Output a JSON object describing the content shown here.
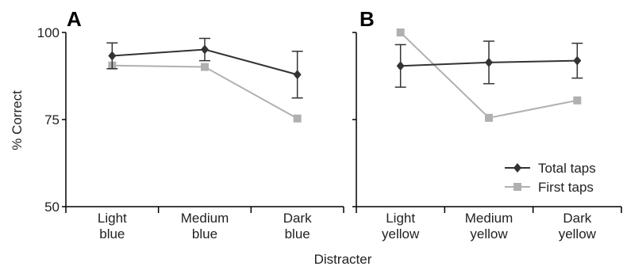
{
  "chart_data": {
    "type": "line",
    "xlabel": "Distracter",
    "ylabel": "% Correct",
    "ylim": [
      50,
      100
    ],
    "yticks": [
      50,
      75,
      100
    ],
    "grid": false,
    "legend": {
      "placement": "bottom-right of panel B",
      "entries": [
        "Total taps",
        "First taps"
      ]
    },
    "colors": {
      "total": "#333333",
      "first": "#b0b0b0"
    },
    "panels": [
      {
        "label": "A",
        "categories": [
          [
            "Light",
            "blue"
          ],
          [
            "Medium",
            "blue"
          ],
          [
            "Dark",
            "blue"
          ]
        ],
        "series": [
          {
            "name": "Total taps",
            "marker": "diamond",
            "values": [
              93.3,
              95.1,
              87.9
            ],
            "error": [
              3.7,
              3.2,
              6.7
            ]
          },
          {
            "name": "First taps",
            "marker": "square",
            "values": [
              90.5,
              90.1,
              75.3
            ]
          }
        ]
      },
      {
        "label": "B",
        "categories": [
          [
            "Light",
            "yellow"
          ],
          [
            "Medium",
            "yellow"
          ],
          [
            "Dark",
            "yellow"
          ]
        ],
        "series": [
          {
            "name": "Total taps",
            "marker": "diamond",
            "values": [
              90.4,
              91.4,
              91.9
            ],
            "error": [
              6.1,
              6.1,
              5.0
            ]
          },
          {
            "name": "First taps",
            "marker": "square",
            "values": [
              100,
              75.5,
              80.5
            ]
          }
        ]
      }
    ]
  }
}
